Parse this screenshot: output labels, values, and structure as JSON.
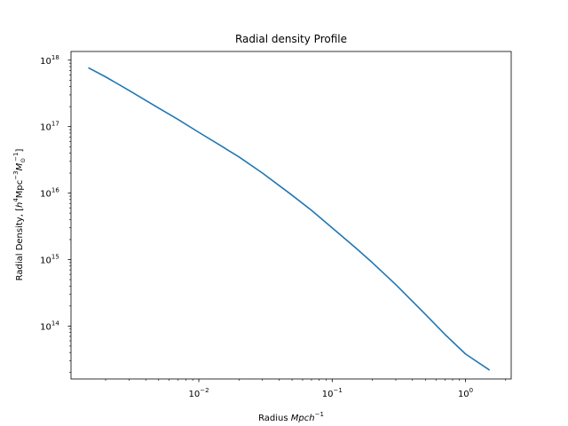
{
  "chart_data": {
    "type": "line",
    "title": "Radial density Profile",
    "xlabel": {
      "prefix": "Radius ",
      "math": "Mpch",
      "sup": "−1"
    },
    "ylabel": {
      "prefix": "Radial Density, [",
      "h": "h",
      "h_sup": "4",
      "mpc": "Mpc",
      "mpc_sup": "−3",
      "m": "M",
      "m_sub": "⊙",
      "m_sup": "−1",
      "suffix": "]"
    },
    "xscale": "log",
    "yscale": "log",
    "xlim": [
      0.0011,
      2.2
    ],
    "ylim": [
      16000000000000.0,
      1.35e+18
    ],
    "xticks": [
      {
        "value": 0.01,
        "base": "10",
        "exp": "−2"
      },
      {
        "value": 0.1,
        "base": "10",
        "exp": "−1"
      },
      {
        "value": 1,
        "base": "10",
        "exp": "0"
      }
    ],
    "yticks": [
      {
        "value": 100000000000000.0,
        "base": "10",
        "exp": "14"
      },
      {
        "value": 1000000000000000.0,
        "base": "10",
        "exp": "15"
      },
      {
        "value": 1e+16,
        "base": "10",
        "exp": "16"
      },
      {
        "value": 1e+17,
        "base": "10",
        "exp": "17"
      },
      {
        "value": 1e+18,
        "base": "10",
        "exp": "18"
      }
    ],
    "grid": false,
    "series": [
      {
        "color": "#1f77b4",
        "x": [
          0.0015,
          0.002,
          0.003,
          0.005,
          0.007,
          0.01,
          0.015,
          0.02,
          0.03,
          0.05,
          0.07,
          0.1,
          0.15,
          0.2,
          0.3,
          0.5,
          0.7,
          1.0,
          1.5
        ],
        "y": [
          7.6e+17,
          5.6e+17,
          3.5e+17,
          1.9e+17,
          1.28e+17,
          8.2e+16,
          5e+16,
          3.5e+16,
          2e+16,
          9300000000000000.0,
          5500000000000000.0,
          3000000000000000.0,
          1500000000000000.0,
          900000000000000.0,
          420000000000000.0,
          150000000000000.0,
          75000000000000.0,
          38000000000000.0,
          22000000000000.0
        ]
      }
    ]
  }
}
